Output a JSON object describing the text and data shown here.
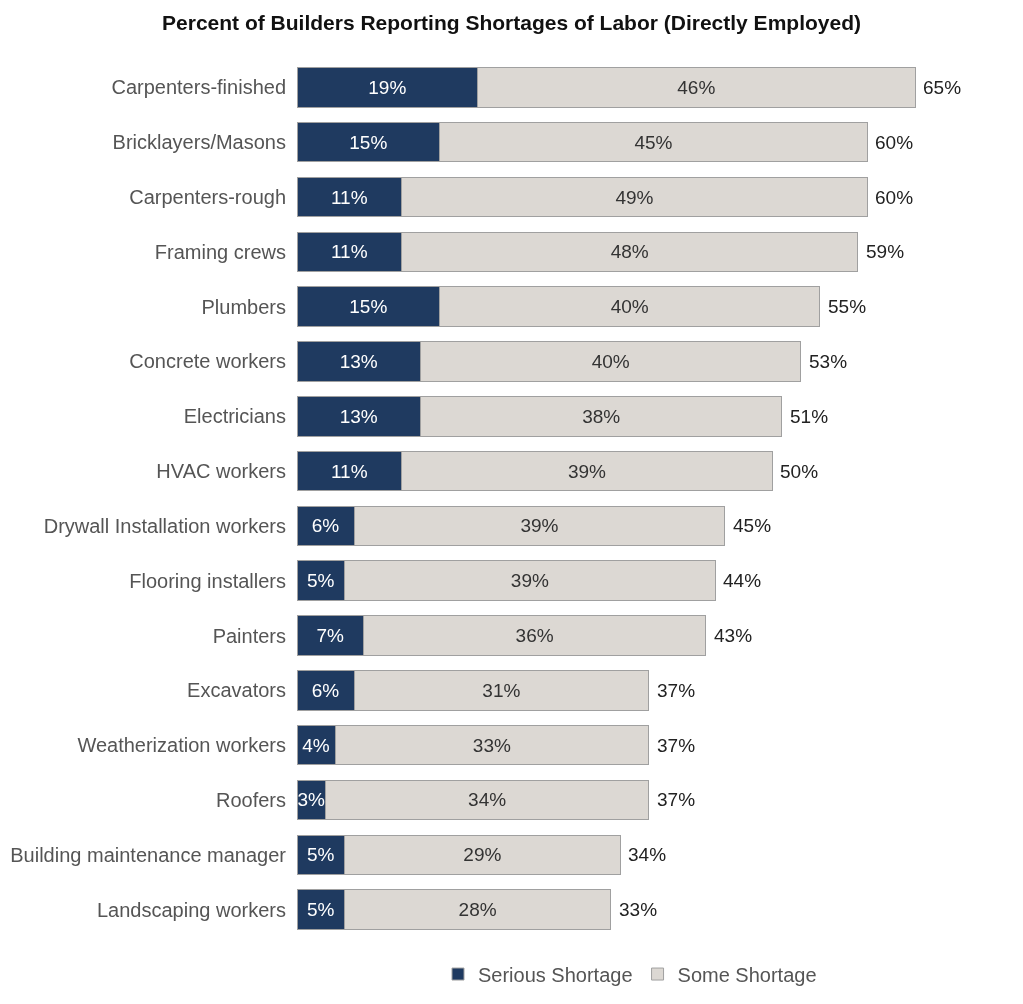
{
  "chart_data": {
    "type": "bar",
    "orientation": "horizontal",
    "stacked": true,
    "legend": "bottom",
    "title": "Percent of Builders Reporting Shortages of Labor (Directly Employed)",
    "categories": [
      "Carpenters-finished",
      "Bricklayers/Masons",
      "Carpenters-rough",
      "Framing crews",
      "Plumbers",
      "Concrete workers",
      "Electricians",
      "HVAC workers",
      "Drywall Installation workers",
      "Flooring installers",
      "Painters",
      "Excavators",
      "Weatherization workers",
      "Roofers",
      "Building maintenance manager",
      "Landscaping workers"
    ],
    "series": [
      {
        "name": "Serious Shortage",
        "color": "#1f3a60",
        "values": [
          19,
          15,
          11,
          11,
          15,
          13,
          13,
          11,
          6,
          5,
          7,
          6,
          4,
          3,
          5,
          5
        ],
        "value_labels": [
          "19%",
          "15%",
          "11%",
          "11%",
          "15%",
          "13%",
          "13%",
          "11%",
          "6%",
          "5%",
          "7%",
          "6%",
          "4%",
          "3%",
          "5%",
          "5%"
        ]
      },
      {
        "name": "Some Shortage",
        "color": "#dcd8d3",
        "values": [
          46,
          45,
          49,
          48,
          40,
          40,
          38,
          39,
          39,
          39,
          36,
          31,
          33,
          34,
          29,
          28
        ],
        "value_labels": [
          "46%",
          "45%",
          "49%",
          "48%",
          "40%",
          "40%",
          "38%",
          "39%",
          "39%",
          "39%",
          "36%",
          "31%",
          "33%",
          "34%",
          "29%",
          "28%"
        ]
      }
    ],
    "totals": [
      "65%",
      "60%",
      "60%",
      "59%",
      "55%",
      "53%",
      "51%",
      "50%",
      "45%",
      "44%",
      "43%",
      "37%",
      "37%",
      "37%",
      "34%",
      "33%"
    ]
  }
}
